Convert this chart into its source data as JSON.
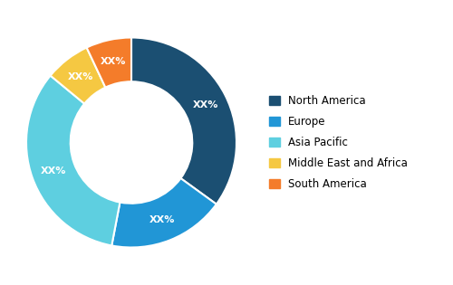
{
  "labels": [
    "North America",
    "Europe",
    "Asia Pacific",
    "Middle East and Africa",
    "South America"
  ],
  "values": [
    35,
    18,
    33,
    7,
    7
  ],
  "colors": [
    "#1b4f72",
    "#2196d6",
    "#5ecfe0",
    "#f5c842",
    "#f47c2a"
  ],
  "label_text": [
    "XX%",
    "XX%",
    "XX%",
    "XX%",
    "XX%"
  ],
  "wedge_label_color": "white",
  "wedge_label_fontsize": 8,
  "legend_fontsize": 8.5,
  "background_color": "#ffffff",
  "donut_width": 0.42,
  "startangle": 90
}
